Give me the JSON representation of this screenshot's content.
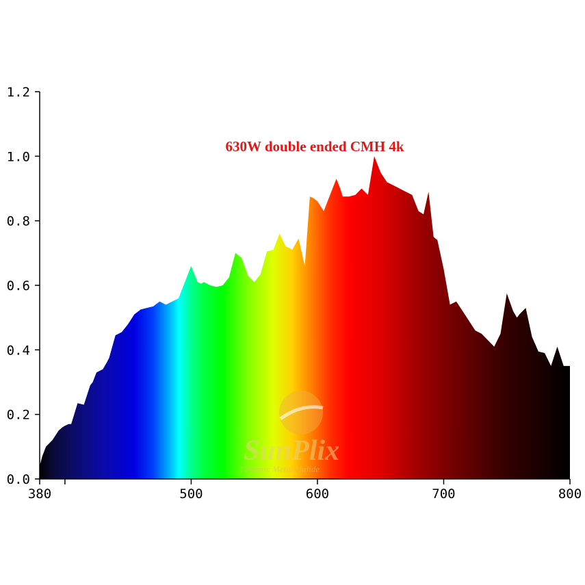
{
  "chart_data": {
    "type": "area",
    "title": "630W double ended CMH 4k",
    "xlabel": "",
    "ylabel": "",
    "xlim": [
      380,
      800
    ],
    "ylim": [
      0,
      1.2
    ],
    "x_ticks": [
      380,
      400,
      500,
      600,
      700,
      800
    ],
    "x_tick_labels": [
      "380",
      "",
      "500",
      "600",
      "700",
      "800"
    ],
    "y_ticks": [
      0,
      0.2,
      0.4,
      0.6,
      0.8,
      1.0,
      1.2
    ],
    "y_tick_labels": [
      "0.0",
      "0.2",
      "0.4",
      "0.6",
      "0.8",
      "1.0",
      "1.2"
    ],
    "grid": false,
    "fill": "visible-spectrum wavelength colors",
    "series": [
      {
        "x": [
          380,
          382,
          385,
          390,
          395,
          398,
          400,
          403,
          405,
          410,
          415,
          420,
          422,
          425,
          430,
          433,
          435,
          440,
          445,
          450,
          455,
          460,
          465,
          470,
          475,
          480,
          485,
          490,
          495,
          500,
          505,
          508,
          510,
          515,
          520,
          525,
          530,
          535,
          540,
          545,
          550,
          555,
          560,
          565,
          570,
          575,
          578,
          580,
          585,
          590,
          594,
          597,
          600,
          605,
          610,
          615,
          618,
          620,
          625,
          630,
          635,
          640,
          645,
          650,
          655,
          660,
          665,
          670,
          675,
          680,
          684,
          688,
          692,
          695,
          700,
          705,
          710,
          715,
          720,
          725,
          730,
          735,
          740,
          745,
          750,
          755,
          758,
          760,
          765,
          770,
          775,
          780,
          785,
          790,
          795,
          800
        ],
        "y": [
          0.04,
          0.07,
          0.1,
          0.12,
          0.15,
          0.16,
          0.165,
          0.17,
          0.17,
          0.235,
          0.23,
          0.29,
          0.3,
          0.33,
          0.34,
          0.36,
          0.375,
          0.445,
          0.455,
          0.48,
          0.51,
          0.525,
          0.53,
          0.535,
          0.55,
          0.54,
          0.55,
          0.56,
          0.61,
          0.66,
          0.61,
          0.605,
          0.61,
          0.6,
          0.595,
          0.6,
          0.625,
          0.7,
          0.685,
          0.63,
          0.61,
          0.635,
          0.705,
          0.71,
          0.76,
          0.72,
          0.715,
          0.71,
          0.745,
          0.66,
          0.875,
          0.87,
          0.86,
          0.83,
          0.88,
          0.93,
          0.9,
          0.875,
          0.875,
          0.88,
          0.9,
          0.88,
          1.0,
          0.95,
          0.92,
          0.91,
          0.9,
          0.89,
          0.88,
          0.83,
          0.82,
          0.89,
          0.75,
          0.74,
          0.65,
          0.54,
          0.55,
          0.52,
          0.49,
          0.46,
          0.45,
          0.43,
          0.41,
          0.45,
          0.575,
          0.52,
          0.5,
          0.51,
          0.53,
          0.44,
          0.395,
          0.39,
          0.35,
          0.41,
          0.35,
          0.35
        ]
      }
    ],
    "watermark": {
      "text": "SunPlix",
      "subtext": "Ceramic Metal Halide"
    }
  }
}
